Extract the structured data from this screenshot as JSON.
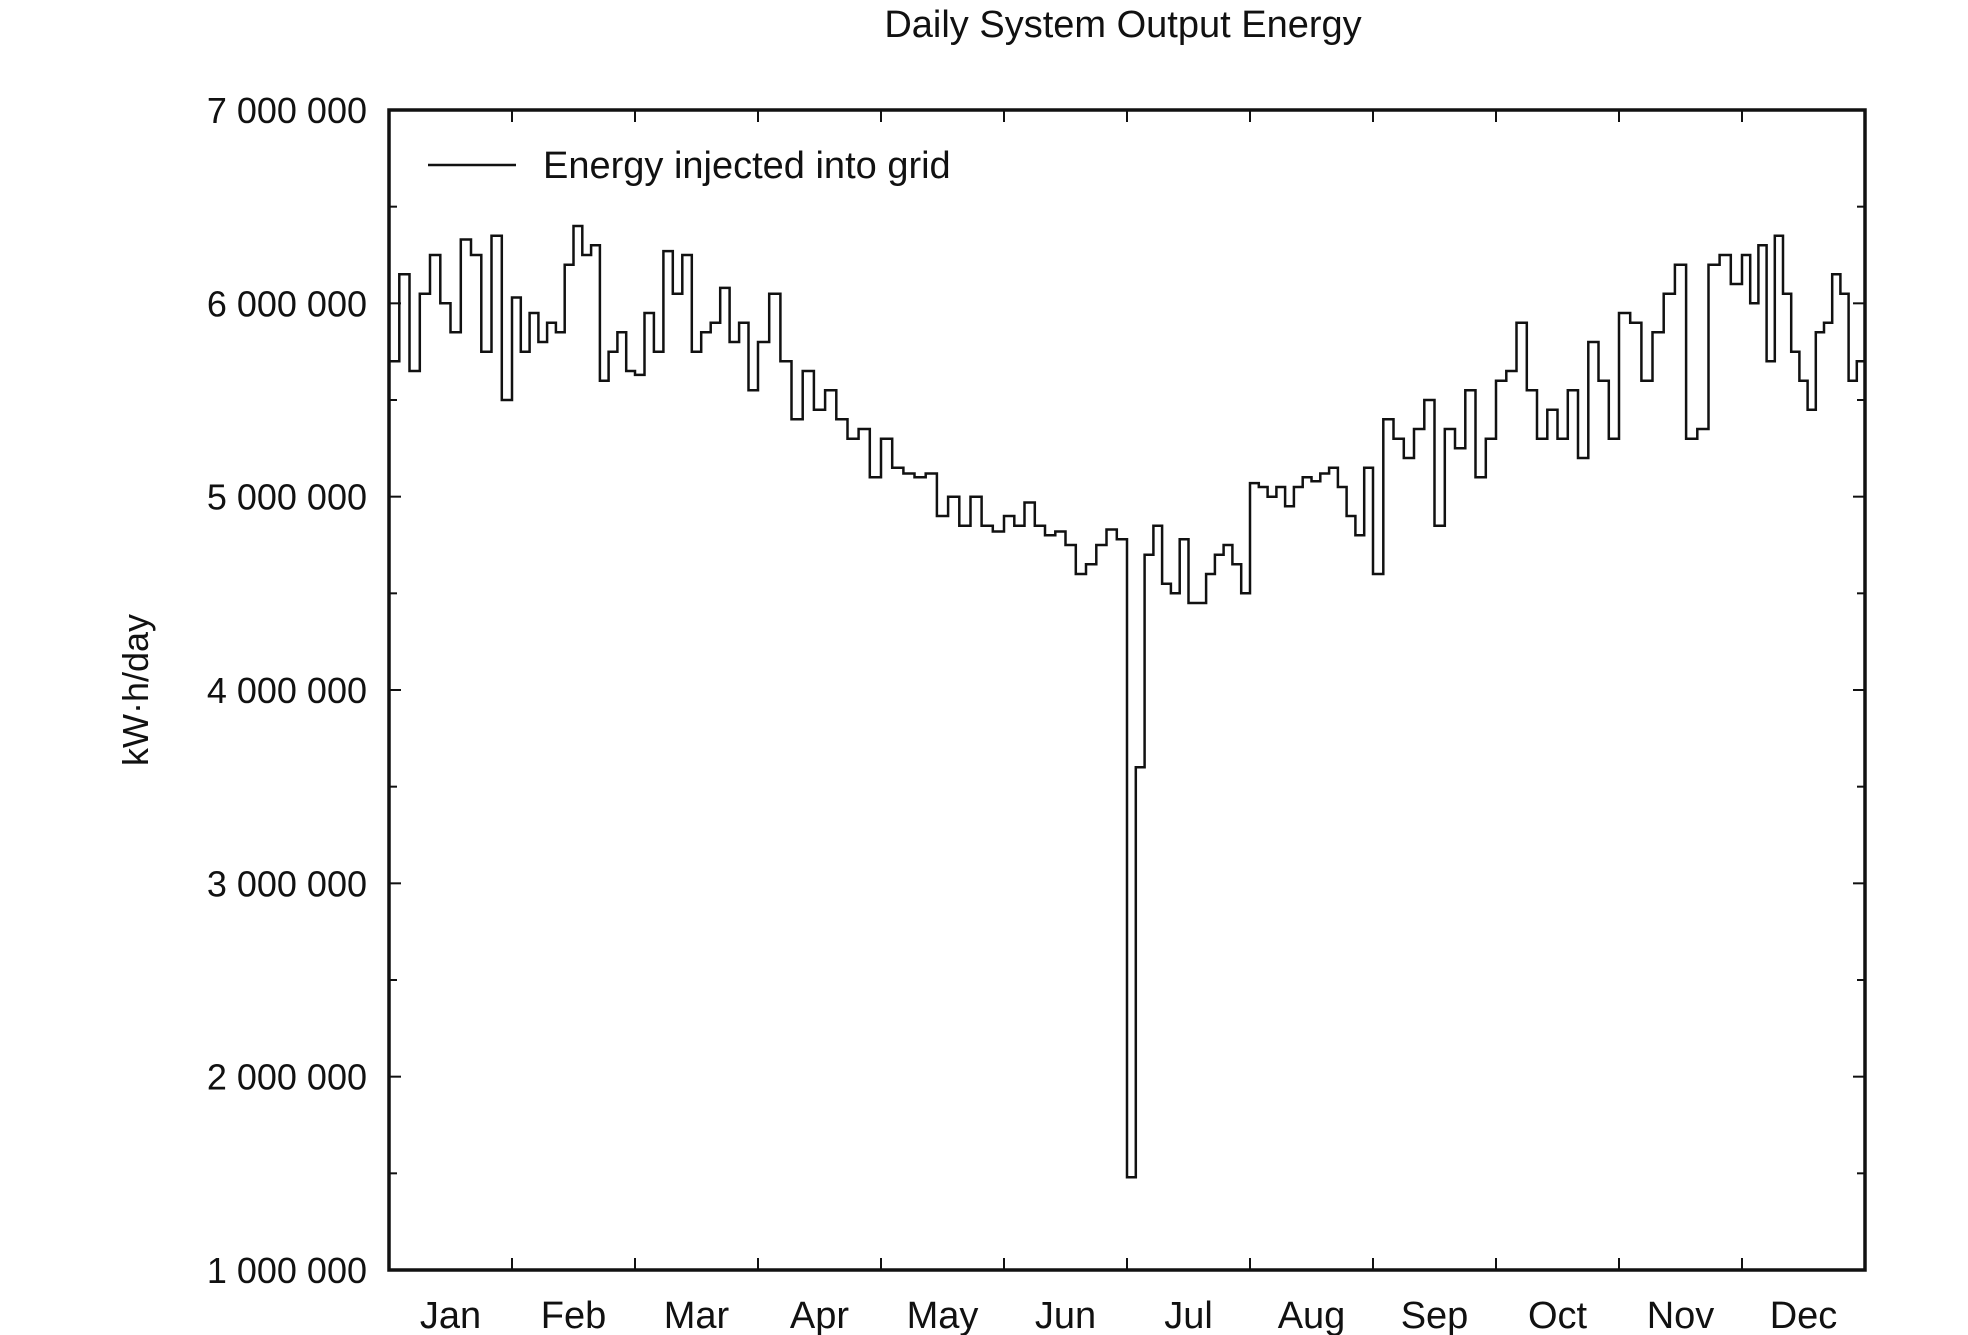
{
  "chart_data": {
    "type": "line",
    "title": "Daily System Output Energy",
    "xlabel": "",
    "ylabel": "kW·h/day",
    "ylim": [
      1000000,
      7000000
    ],
    "yticks": [
      1000000,
      2000000,
      3000000,
      4000000,
      5000000,
      6000000,
      7000000
    ],
    "ytick_labels": [
      "1 000 000",
      "2 000 000",
      "3 000 000",
      "4 000 000",
      "5 000 000",
      "6 000 000",
      "7 000 000"
    ],
    "categories": [
      "Jan",
      "Feb",
      "Mar",
      "Apr",
      "May",
      "Jun",
      "Jul",
      "Aug",
      "Sep",
      "Oct",
      "Nov",
      "Dec"
    ],
    "legend": {
      "position": "top-left",
      "entries": [
        "Energy injected into grid"
      ]
    },
    "grid": false,
    "series": [
      {
        "name": "Energy injected into grid",
        "unit_scale": 1000000,
        "monthly_values_millions": [
          [
            5.7,
            6.15,
            5.65,
            6.05,
            6.25,
            6.0,
            5.85,
            6.33,
            6.25,
            5.75,
            6.35,
            5.5
          ],
          [
            6.03,
            5.75,
            5.95,
            5.8,
            5.9,
            5.85,
            6.2,
            6.4,
            6.25,
            6.3,
            5.6,
            5.75,
            5.85,
            5.65
          ],
          [
            5.63,
            5.95,
            5.75,
            6.27,
            6.05,
            6.25,
            5.75,
            5.85,
            5.9,
            6.08,
            5.8,
            5.9,
            5.55
          ],
          [
            5.8,
            6.05,
            5.7,
            5.4,
            5.65,
            5.45,
            5.55,
            5.4,
            5.3,
            5.35,
            5.1
          ],
          [
            5.3,
            5.15,
            5.12,
            5.1,
            5.12,
            4.9,
            5.0,
            4.85,
            5.0,
            4.85,
            4.82
          ],
          [
            4.9,
            4.85,
            4.97,
            4.85,
            4.8,
            4.82,
            4.75,
            4.6,
            4.65,
            4.75,
            4.83,
            4.78
          ],
          [
            1.48,
            3.6,
            4.7,
            4.85,
            4.55,
            4.5,
            4.78,
            4.45,
            4.45,
            4.6,
            4.7,
            4.75,
            4.65,
            4.5
          ],
          [
            5.07,
            5.05,
            5.0,
            5.05,
            4.95,
            5.05,
            5.1,
            5.08,
            5.12,
            5.15,
            5.05,
            4.9,
            4.8,
            5.15
          ],
          [
            4.6,
            5.4,
            5.3,
            5.2,
            5.35,
            5.5,
            4.85,
            5.35,
            5.25,
            5.55,
            5.1,
            5.3
          ],
          [
            5.6,
            5.65,
            5.9,
            5.55,
            5.3,
            5.45,
            5.3,
            5.55,
            5.2,
            5.8,
            5.6,
            5.3
          ],
          [
            5.95,
            5.9,
            5.6,
            5.85,
            6.05,
            6.2,
            5.3,
            5.35,
            6.2,
            6.25,
            6.1
          ],
          [
            6.25,
            6.0,
            6.3,
            5.7,
            6.35,
            6.05,
            5.75,
            5.6,
            5.45,
            5.85,
            5.9,
            6.15,
            6.05,
            5.6,
            5.7
          ]
        ]
      }
    ]
  }
}
